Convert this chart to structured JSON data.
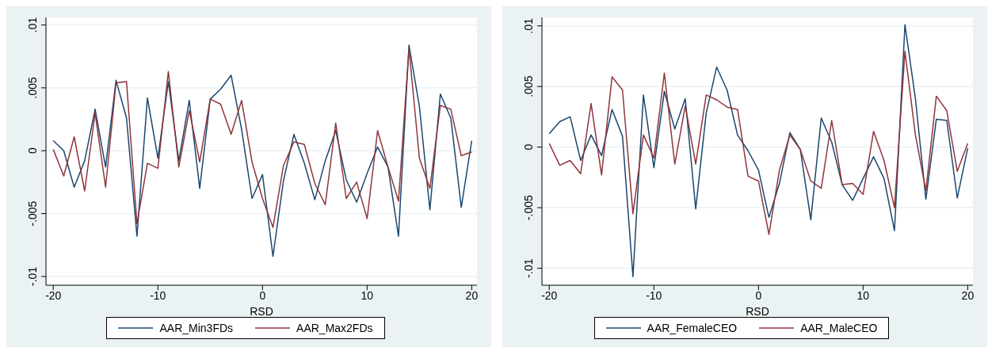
{
  "chart_data": [
    {
      "type": "line",
      "xlabel": "RSD",
      "x": [
        -20,
        -19,
        -18,
        -17,
        -16,
        -15,
        -14,
        -13,
        -12,
        -11,
        -10,
        -9,
        -8,
        -7,
        -6,
        -5,
        -4,
        -3,
        -2,
        -1,
        0,
        1,
        2,
        3,
        4,
        5,
        6,
        7,
        8,
        9,
        10,
        11,
        12,
        13,
        14,
        15,
        16,
        17,
        18,
        19,
        20
      ],
      "series": [
        {
          "name": "AAR_Min3FDs",
          "color": "#1a476f",
          "values": [
            0.0008,
            0.0,
            -0.0029,
            -0.0008,
            0.0033,
            -0.0013,
            0.0056,
            0.0026,
            -0.0068,
            0.0042,
            -0.0006,
            0.0055,
            -0.0008,
            0.004,
            -0.003,
            0.0041,
            0.0049,
            0.006,
            0.0017,
            -0.0038,
            -0.0019,
            -0.0084,
            -0.0024,
            0.0013,
            -0.001,
            -0.0039,
            -0.0008,
            0.0016,
            -0.0023,
            -0.0041,
            -0.0018,
            0.0003,
            -0.0013,
            -0.0068,
            0.0084,
            0.0035,
            -0.0047,
            0.0045,
            0.0026,
            -0.0045,
            0.0008
          ]
        },
        {
          "name": "AAR_Max2FDs",
          "color": "#90353b",
          "values": [
            0.0001,
            -0.002,
            0.0011,
            -0.0032,
            0.003,
            -0.0029,
            0.0054,
            0.0055,
            -0.0058,
            -0.001,
            -0.0014,
            0.0063,
            -0.0013,
            0.0032,
            -0.0009,
            0.0041,
            0.0037,
            0.0013,
            0.004,
            -0.0009,
            -0.0038,
            -0.0061,
            -0.0012,
            0.0007,
            0.0005,
            -0.0026,
            -0.0043,
            0.0022,
            -0.0038,
            -0.0025,
            -0.0054,
            0.0016,
            -0.0013,
            -0.004,
            0.0081,
            -0.0006,
            -0.003,
            0.0036,
            0.0033,
            -0.0004,
            -0.0001
          ]
        }
      ],
      "xlim": [
        -20.7,
        20.5
      ],
      "xticks": [
        -20,
        -10,
        0,
        10,
        20
      ],
      "ylim": [
        -0.0107,
        0.0106
      ],
      "yticks": [
        {
          "value": -0.01,
          "label": "-.01"
        },
        {
          "value": -0.005,
          "label": "-.005"
        },
        {
          "value": 0,
          "label": "0"
        },
        {
          "value": 0.005,
          "label": ".005"
        },
        {
          "value": 0.01,
          "label": ".01"
        }
      ],
      "grid": "y",
      "legend": "bottom",
      "marker": "none",
      "line_style": "solid"
    },
    {
      "type": "line",
      "xlabel": "RSD",
      "x": [
        -20,
        -19,
        -18,
        -17,
        -16,
        -15,
        -14,
        -13,
        -12,
        -11,
        -10,
        -9,
        -8,
        -7,
        -6,
        -5,
        -4,
        -3,
        -2,
        -1,
        0,
        1,
        2,
        3,
        4,
        5,
        6,
        7,
        8,
        9,
        10,
        11,
        12,
        13,
        14,
        15,
        16,
        17,
        18,
        19,
        20
      ],
      "series": [
        {
          "name": "AAR_FemaleCEO",
          "color": "#1a476f",
          "values": [
            0.0011,
            0.0021,
            0.0025,
            -0.0011,
            0.001,
            -0.0007,
            0.0031,
            0.0009,
            -0.0107,
            0.0043,
            -0.0017,
            0.0046,
            0.0015,
            0.004,
            -0.0051,
            0.0028,
            0.0066,
            0.0047,
            0.001,
            -0.0003,
            -0.0019,
            -0.0058,
            -0.003,
            0.0012,
            -0.0002,
            -0.006,
            0.0024,
            0.0004,
            -0.0031,
            -0.0044,
            -0.0026,
            -0.0008,
            -0.0026,
            -0.0069,
            0.0101,
            0.004,
            -0.0043,
            0.0023,
            0.0022,
            -0.0042,
            -0.0001
          ]
        },
        {
          "name": "AAR_MaleCEO",
          "color": "#90353b",
          "values": [
            0.0003,
            -0.0015,
            -0.0011,
            -0.0022,
            0.0036,
            -0.0023,
            0.0058,
            0.0047,
            -0.0055,
            0.001,
            -0.0009,
            0.0061,
            -0.0014,
            0.0034,
            -0.0014,
            0.0043,
            0.0039,
            0.0033,
            0.0031,
            -0.0024,
            -0.0028,
            -0.0072,
            -0.0019,
            0.001,
            -0.0002,
            -0.0028,
            -0.0034,
            0.0022,
            -0.0031,
            -0.003,
            -0.0039,
            0.0013,
            -0.0011,
            -0.005,
            0.0079,
            0.001,
            -0.0036,
            0.0042,
            0.003,
            -0.002,
            0.0003
          ]
        }
      ],
      "xlim": [
        -20.7,
        20.5
      ],
      "xticks": [
        -20,
        -10,
        0,
        10,
        20
      ],
      "ylim": [
        -0.0114,
        0.0107
      ],
      "yticks": [
        {
          "value": -0.01,
          "label": "-.01"
        },
        {
          "value": -0.005,
          "label": "-.005"
        },
        {
          "value": 0,
          "label": "0"
        },
        {
          "value": 0.005,
          "label": ".005"
        },
        {
          "value": 0.01,
          "label": ".01"
        }
      ],
      "grid": "y",
      "legend": "bottom",
      "marker": "none",
      "line_style": "solid"
    }
  ]
}
